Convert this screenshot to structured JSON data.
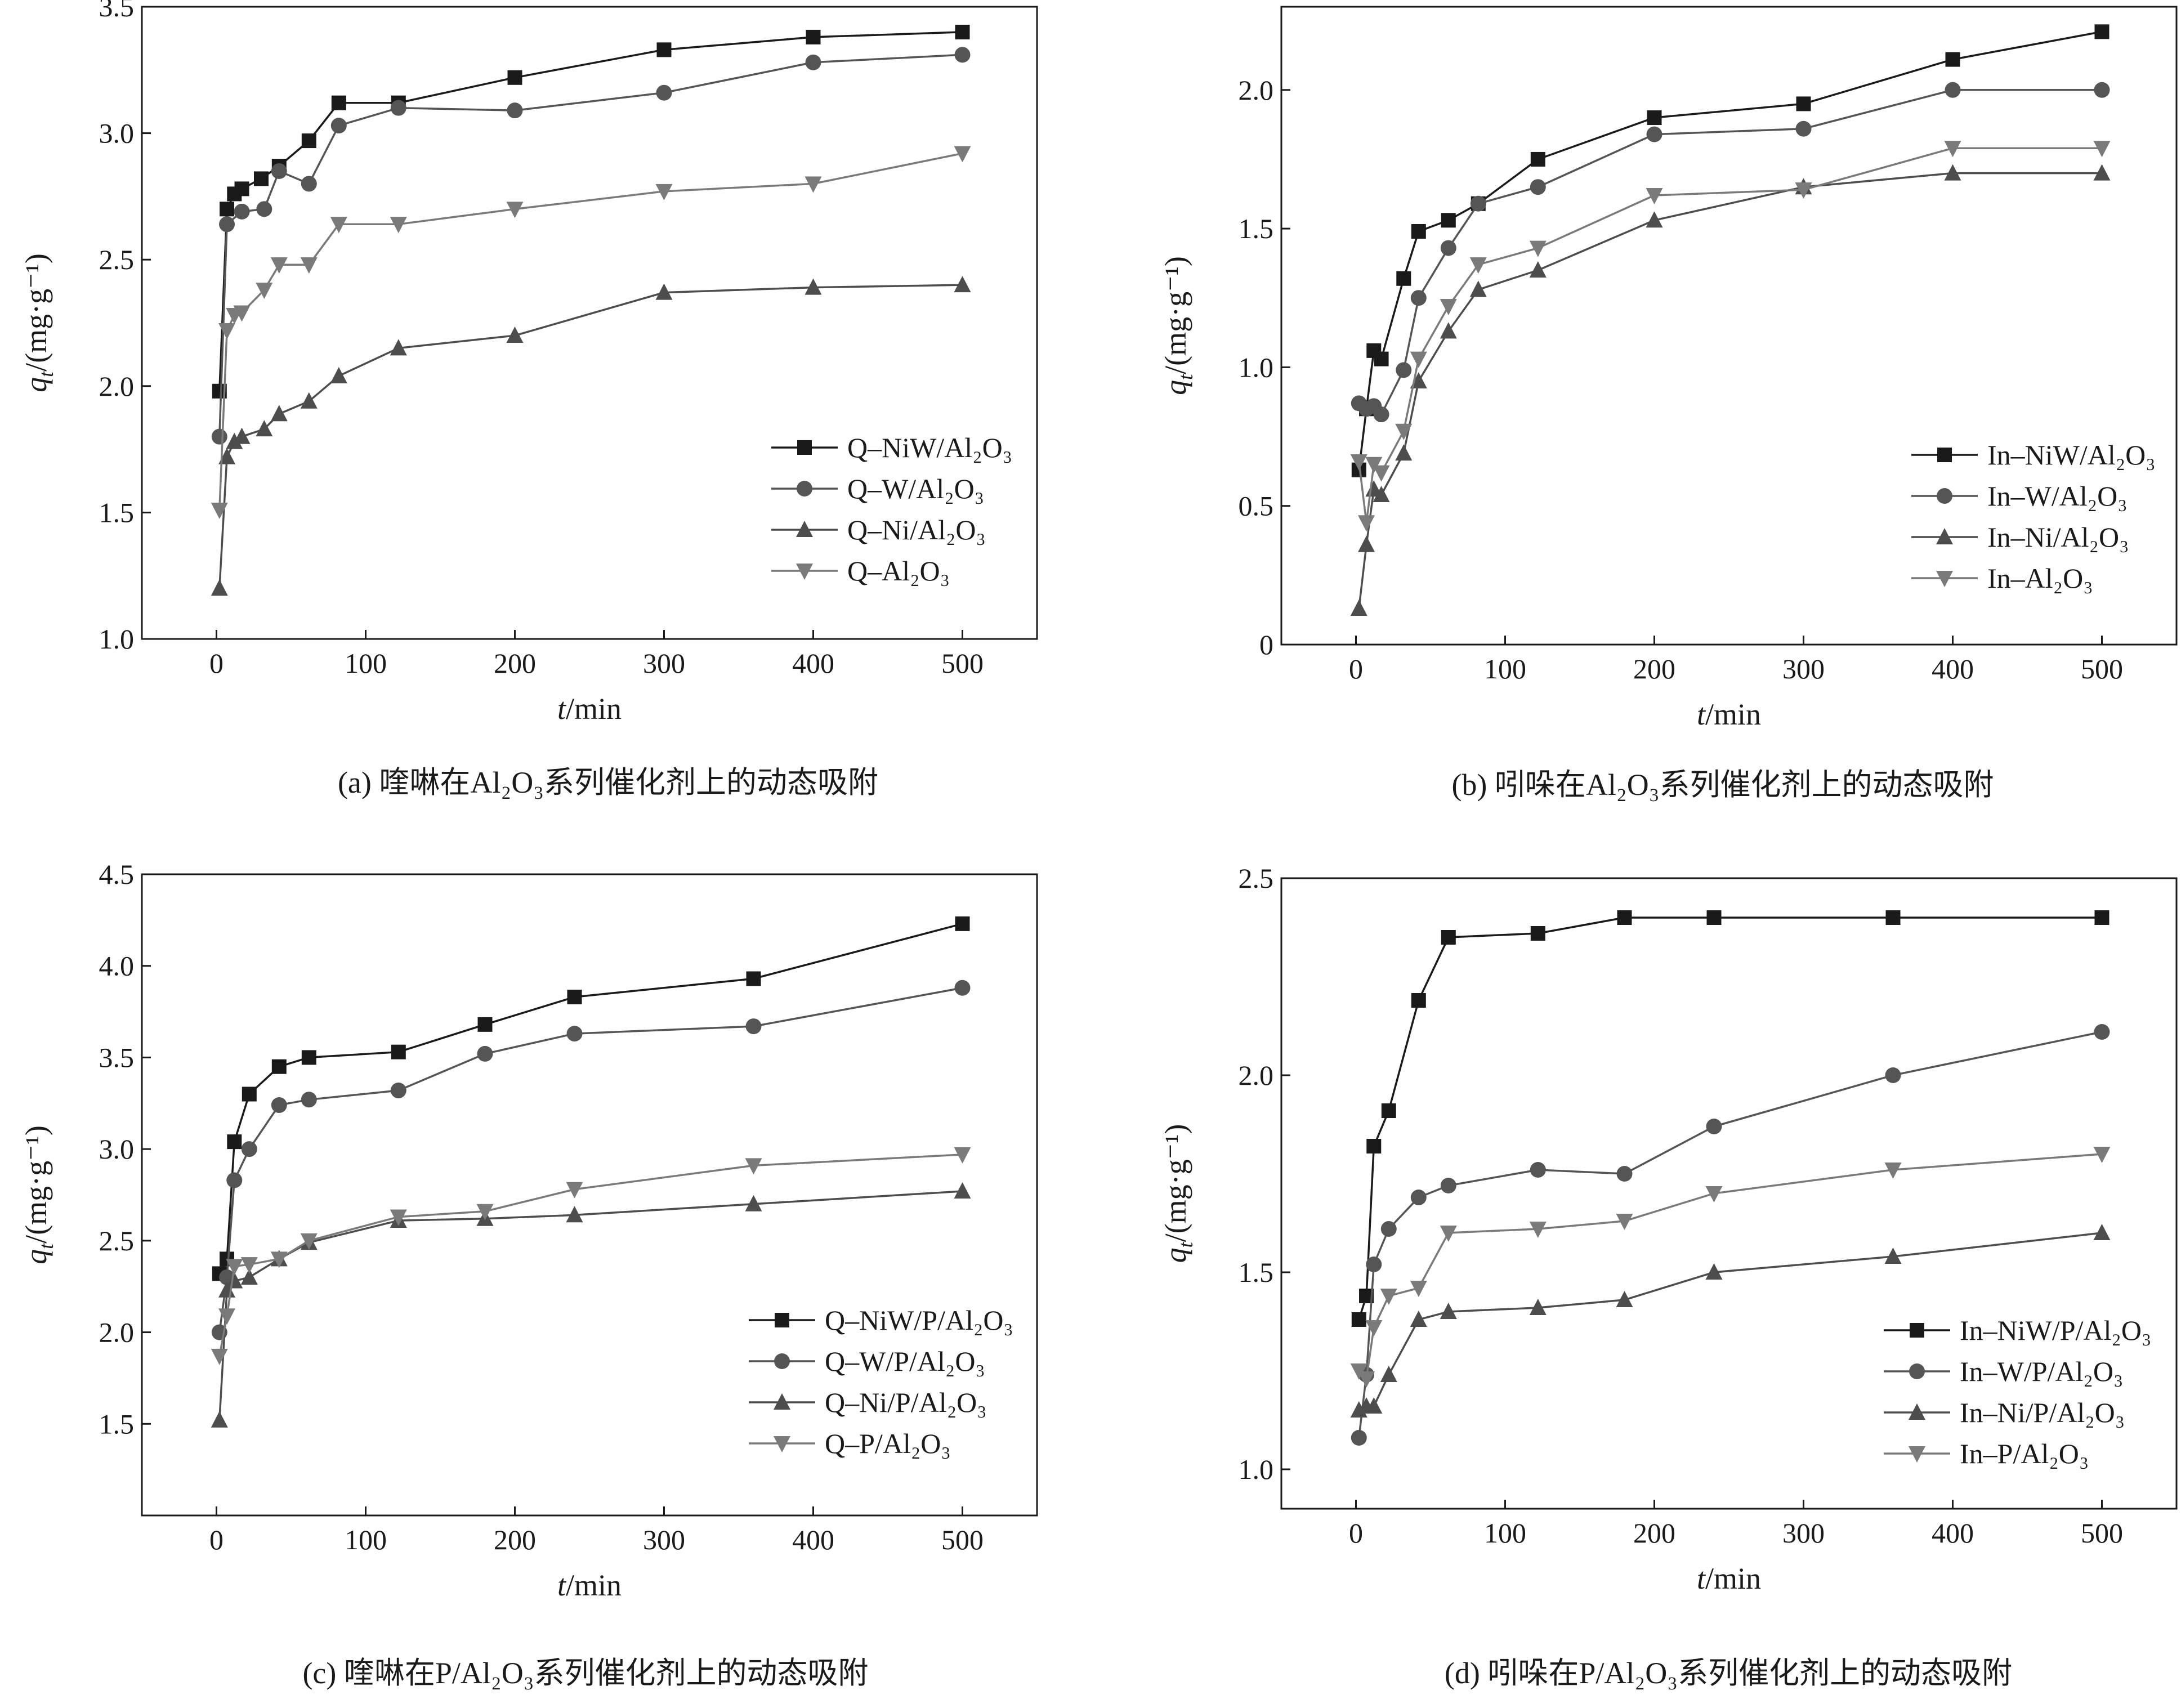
{
  "figure": {
    "panels": [
      {
        "caption": "(a) 喹啉在Al₂O₃系列催化剂上的动态吸附",
        "legend": [
          "Q–NiW/Al₂O₃",
          "Q–W/Al₂O₃",
          "Q–Ni/Al₂O₃",
          "Q–Al₂O₃"
        ]
      },
      {
        "caption": "(b) 吲哚在Al₂O₃系列催化剂上的动态吸附",
        "legend": [
          "In–NiW/Al₂O₃",
          "In–W/Al₂O₃",
          "In–Ni/Al₂O₃",
          "In–Al₂O₃"
        ]
      },
      {
        "caption": "(c) 喹啉在P/Al₂O₃系列催化剂上的动态吸附",
        "legend": [
          "Q–NiW/P/Al₂O₃",
          "Q–W/P/Al₂O₃",
          "Q–Ni/P/Al₂O₃",
          "Q–P/Al₂O₃"
        ]
      },
      {
        "caption": "(d) 吲哚在P/Al₂O₃系列催化剂上的动态吸附",
        "legend": [
          "In–NiW/P/Al₂O₃",
          "In–W/P/Al₂O₃",
          "In–Ni/P/Al₂O₃",
          "In–P/Al₂O₃"
        ]
      }
    ]
  },
  "chart_data": [
    {
      "type": "line",
      "xlabel": "t/min",
      "ylabel": "qt/(mg·g⁻¹)",
      "xlim": [
        -50,
        550
      ],
      "ylim": [
        1.0,
        3.5
      ],
      "xticks": [
        "0",
        "100",
        "200",
        "300",
        "400",
        "500"
      ],
      "yticks": [
        "1.0",
        "1.5",
        "2.0",
        "2.5",
        "3.0",
        "3.5"
      ],
      "legend_position": "bottom-right",
      "series": [
        {
          "name": "Q–NiW/Al₂O₃",
          "marker": "square",
          "color": "#1a1a1a",
          "x": [
            2,
            7,
            12,
            17,
            30,
            42,
            62,
            82,
            122,
            200,
            300,
            400,
            500
          ],
          "y": [
            1.98,
            2.7,
            2.76,
            2.78,
            2.82,
            2.87,
            2.97,
            3.12,
            3.12,
            3.22,
            3.33,
            3.38,
            3.4
          ]
        },
        {
          "name": "Q–W/Al₂O₃",
          "marker": "circle",
          "color": "#555555",
          "x": [
            2,
            7,
            17,
            32,
            42,
            62,
            82,
            122,
            200,
            300,
            400,
            500
          ],
          "y": [
            1.8,
            2.64,
            2.69,
            2.7,
            2.85,
            2.8,
            3.03,
            3.1,
            3.09,
            3.16,
            3.28,
            3.31
          ]
        },
        {
          "name": "Q–Ni/Al₂O₃",
          "marker": "triangle-up",
          "color": "#4d4d4d",
          "x": [
            2,
            7,
            12,
            17,
            32,
            42,
            62,
            82,
            122,
            200,
            300,
            400,
            500
          ],
          "y": [
            1.2,
            1.72,
            1.78,
            1.8,
            1.83,
            1.89,
            1.94,
            2.04,
            2.15,
            2.2,
            2.37,
            2.39,
            2.4
          ]
        },
        {
          "name": "Q–Al₂O₃",
          "marker": "triangle-down",
          "color": "#7a7a7a",
          "x": [
            2,
            7,
            12,
            17,
            32,
            42,
            62,
            82,
            122,
            200,
            300,
            400,
            500
          ],
          "y": [
            1.51,
            2.22,
            2.28,
            2.29,
            2.38,
            2.48,
            2.48,
            2.64,
            2.64,
            2.7,
            2.77,
            2.8,
            2.92
          ]
        }
      ]
    },
    {
      "type": "line",
      "xlabel": "t/min",
      "ylabel": "qt/(mg·g⁻¹)",
      "xlim": [
        -50,
        550
      ],
      "ylim": [
        0,
        2.3
      ],
      "xticks": [
        "0",
        "100",
        "200",
        "300",
        "400",
        "500"
      ],
      "yticks": [
        "0",
        "0.5",
        "1.0",
        "1.5",
        "2.0"
      ],
      "legend_position": "bottom-right",
      "series": [
        {
          "name": "In–NiW/Al₂O₃",
          "marker": "square",
          "color": "#1a1a1a",
          "x": [
            2,
            7,
            12,
            17,
            32,
            42,
            62,
            82,
            122,
            200,
            300,
            400,
            500
          ],
          "y": [
            0.63,
            0.85,
            1.06,
            1.03,
            1.32,
            1.49,
            1.53,
            1.59,
            1.75,
            1.9,
            1.95,
            2.11,
            2.21
          ]
        },
        {
          "name": "In–W/Al₂O₃",
          "marker": "circle",
          "color": "#555555",
          "x": [
            2,
            7,
            12,
            17,
            32,
            42,
            62,
            82,
            122,
            200,
            300,
            400,
            500
          ],
          "y": [
            0.87,
            0.85,
            0.86,
            0.83,
            0.99,
            1.25,
            1.43,
            1.59,
            1.65,
            1.84,
            1.86,
            2.0,
            2.0
          ]
        },
        {
          "name": "In–Ni/Al₂O₃",
          "marker": "triangle-up",
          "color": "#4d4d4d",
          "x": [
            2,
            7,
            12,
            17,
            32,
            42,
            62,
            82,
            122,
            200,
            300,
            400,
            500
          ],
          "y": [
            0.13,
            0.36,
            0.56,
            0.54,
            0.69,
            0.95,
            1.13,
            1.28,
            1.35,
            1.53,
            1.65,
            1.7,
            1.7
          ]
        },
        {
          "name": "In–Al₂O₃",
          "marker": "triangle-down",
          "color": "#7a7a7a",
          "x": [
            2,
            7,
            12,
            17,
            32,
            42,
            62,
            82,
            122,
            200,
            300,
            400,
            500
          ],
          "y": [
            0.66,
            0.44,
            0.65,
            0.62,
            0.77,
            1.03,
            1.22,
            1.37,
            1.43,
            1.62,
            1.64,
            1.79,
            1.79
          ]
        }
      ]
    },
    {
      "type": "line",
      "xlabel": "t/min",
      "ylabel": "qt/(mg·g⁻¹)",
      "xlim": [
        -50,
        550
      ],
      "ylim": [
        1.0,
        4.5
      ],
      "xticks": [
        "0",
        "100",
        "200",
        "300",
        "400",
        "500"
      ],
      "yticks": [
        "1.5",
        "2.0",
        "2.5",
        "3.0",
        "3.5",
        "4.0",
        "4.5"
      ],
      "legend_position": "bottom-right",
      "series": [
        {
          "name": "Q–NiW/P/Al₂O₃",
          "marker": "square",
          "color": "#1a1a1a",
          "x": [
            2,
            7,
            12,
            22,
            42,
            62,
            122,
            180,
            240,
            360,
            500
          ],
          "y": [
            2.32,
            2.4,
            3.04,
            3.3,
            3.45,
            3.5,
            3.53,
            3.68,
            3.83,
            3.93,
            4.23
          ]
        },
        {
          "name": "Q–W/P/Al₂O₃",
          "marker": "circle",
          "color": "#555555",
          "x": [
            2,
            7,
            12,
            22,
            42,
            62,
            122,
            180,
            240,
            360,
            500
          ],
          "y": [
            2.0,
            2.3,
            2.83,
            3.0,
            3.24,
            3.27,
            3.32,
            3.52,
            3.63,
            3.67,
            3.88
          ]
        },
        {
          "name": "Q–Ni/P/Al₂O₃",
          "marker": "triangle-up",
          "color": "#4d4d4d",
          "x": [
            2,
            7,
            12,
            22,
            42,
            62,
            122,
            180,
            240,
            360,
            500
          ],
          "y": [
            1.52,
            2.23,
            2.28,
            2.3,
            2.4,
            2.49,
            2.61,
            2.62,
            2.64,
            2.7,
            2.77
          ]
        },
        {
          "name": "Q–P/Al₂O₃",
          "marker": "triangle-down",
          "color": "#7a7a7a",
          "x": [
            2,
            7,
            12,
            22,
            42,
            62,
            122,
            180,
            240,
            360,
            500
          ],
          "y": [
            1.87,
            2.09,
            2.36,
            2.37,
            2.4,
            2.5,
            2.63,
            2.66,
            2.78,
            2.91,
            2.97
          ]
        }
      ]
    },
    {
      "type": "line",
      "xlabel": "t/min",
      "ylabel": "qt/(mg·g⁻¹)",
      "xlim": [
        -50,
        550
      ],
      "ylim": [
        0.9,
        2.5
      ],
      "xticks": [
        "0",
        "100",
        "200",
        "300",
        "400",
        "500"
      ],
      "yticks": [
        "1.0",
        "1.5",
        "2.0",
        "2.5"
      ],
      "legend_position": "bottom-right",
      "series": [
        {
          "name": "In–NiW/P/Al₂O₃",
          "marker": "square",
          "color": "#1a1a1a",
          "x": [
            2,
            7,
            12,
            22,
            42,
            62,
            122,
            180,
            240,
            360,
            500
          ],
          "y": [
            1.38,
            1.44,
            1.82,
            1.91,
            2.19,
            2.35,
            2.36,
            2.4,
            2.4,
            2.4,
            2.4
          ]
        },
        {
          "name": "In–W/P/Al₂O₃",
          "marker": "circle",
          "color": "#555555",
          "x": [
            2,
            7,
            12,
            22,
            42,
            62,
            122,
            180,
            240,
            360,
            500
          ],
          "y": [
            1.08,
            1.24,
            1.52,
            1.61,
            1.69,
            1.72,
            1.76,
            1.75,
            1.87,
            2.0,
            2.11
          ]
        },
        {
          "name": "In–Ni/P/Al₂O₃",
          "marker": "triangle-up",
          "color": "#4d4d4d",
          "x": [
            2,
            7,
            12,
            22,
            42,
            62,
            122,
            180,
            240,
            360,
            500
          ],
          "y": [
            1.15,
            1.16,
            1.16,
            1.24,
            1.38,
            1.4,
            1.41,
            1.43,
            1.5,
            1.54,
            1.6
          ]
        },
        {
          "name": "In–P/Al₂O₃",
          "marker": "triangle-down",
          "color": "#7a7a7a",
          "x": [
            2,
            7,
            12,
            22,
            42,
            62,
            122,
            180,
            240,
            360,
            500
          ],
          "y": [
            1.25,
            1.23,
            1.36,
            1.44,
            1.46,
            1.6,
            1.61,
            1.63,
            1.7,
            1.76,
            1.8
          ]
        }
      ]
    }
  ]
}
